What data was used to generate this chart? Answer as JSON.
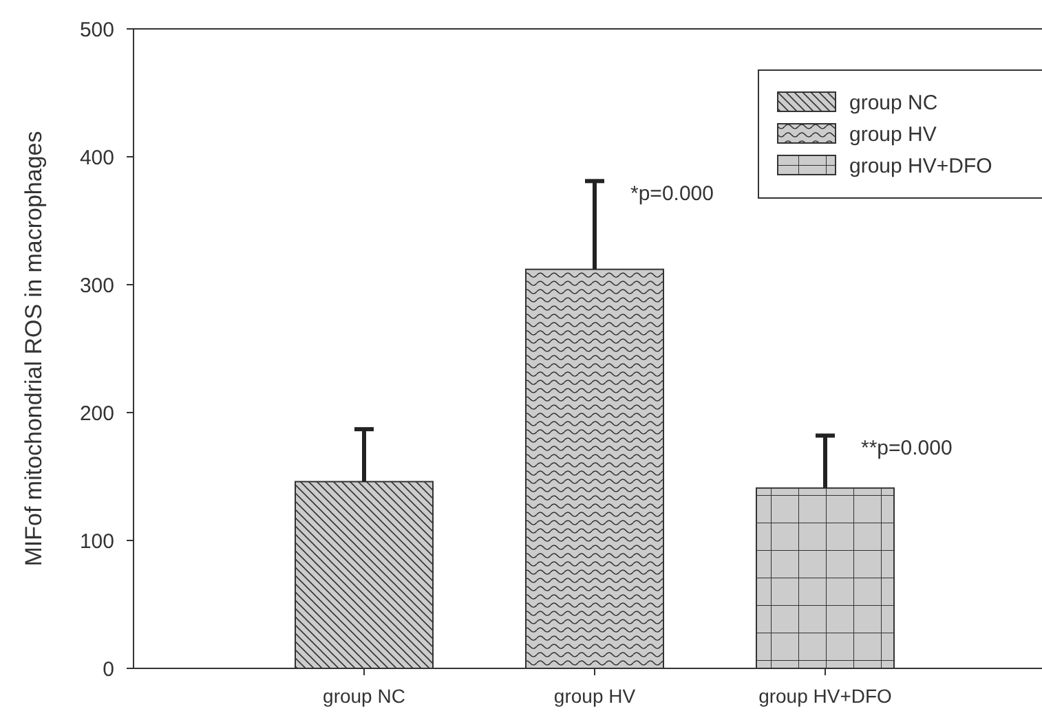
{
  "chart_data": {
    "type": "bar",
    "ylabel": "MIFof mitochondrial  ROS in macrophages",
    "categories": [
      "group NC",
      "group HV",
      "group HV+DFO"
    ],
    "series": [
      {
        "name": "group NC",
        "color": "#cccccc",
        "values": [
          146,
          null,
          null
        ],
        "errors": [
          [
            146,
            187
          ],
          null,
          null
        ]
      },
      {
        "name": "group HV",
        "color": "#cccccc",
        "values": [
          null,
          312,
          null
        ],
        "errors": [
          null,
          [
            312,
            381
          ],
          null
        ]
      },
      {
        "name": "group HV+DFO",
        "color": "#cccccc",
        "values": [
          null,
          null,
          141
        ],
        "errors": [
          null,
          null,
          [
            141,
            182
          ]
        ]
      }
    ],
    "ylim": [
      0,
      500
    ],
    "yticks": [
      0,
      100,
      200,
      300,
      400,
      500
    ],
    "legend": "top right",
    "grid": false,
    "annotations": [
      {
        "text": "*p=0.000",
        "x": "group HV",
        "y": 381
      },
      {
        "text": "**p=0.000",
        "x": "group HV+DFO",
        "y": 182
      }
    ]
  }
}
